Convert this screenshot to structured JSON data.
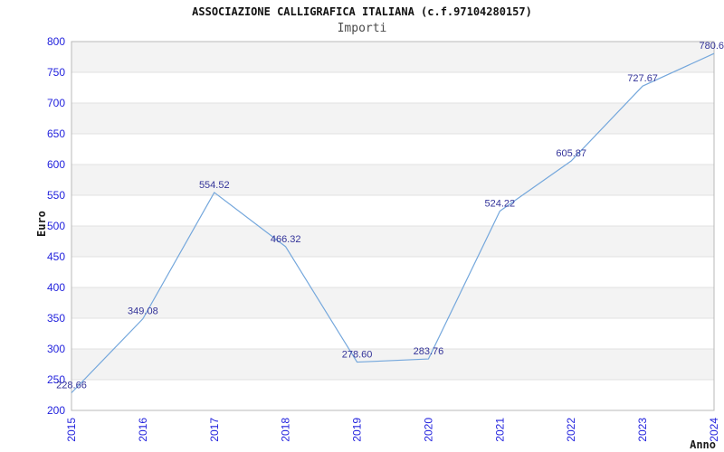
{
  "header": {
    "title": "ASSOCIAZIONE CALLIGRAFICA ITALIANA (c.f.97104280157)",
    "subtitle": "Importi"
  },
  "chart_data": {
    "type": "line",
    "title": "ASSOCIAZIONE CALLIGRAFICA ITALIANA (c.f.97104280157)",
    "subtitle": "Importi",
    "categories": [
      "2015",
      "2016",
      "2017",
      "2018",
      "2019",
      "2020",
      "2021",
      "2022",
      "2023",
      "2024"
    ],
    "values": [
      228.66,
      349.08,
      554.52,
      466.32,
      278.6,
      283.76,
      524.22,
      605.87,
      727.67,
      780.6
    ],
    "point_labels": [
      "228.66",
      "349.08",
      "554.52",
      "466.32",
      "278.60",
      "283.76",
      "524.22",
      "605.87",
      "727.67",
      "780.6"
    ],
    "xlabel": "Anno",
    "ylabel": "Euro",
    "ylim": [
      200,
      800
    ],
    "ytick_step": 50,
    "yticks": [
      200,
      250,
      300,
      350,
      400,
      450,
      500,
      550,
      600,
      650,
      700,
      750,
      800
    ],
    "legend": "none",
    "grid": "horizontal-bands-alternating",
    "colors": {
      "line": "#74a7dc",
      "band": "#f3f3f3",
      "gridline": "#e0e0e0",
      "plot_border": "#b8b8b8",
      "tick_label": "#2222dd",
      "data_label": "#333399",
      "axis_title": "#1a1a1a",
      "title": "#111111",
      "subtitle": "#4a4a4a",
      "background": "#ffffff"
    }
  }
}
